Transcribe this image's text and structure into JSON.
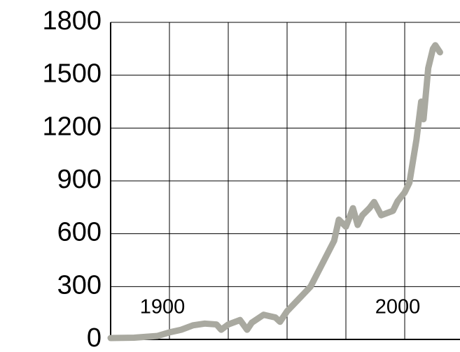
{
  "chart_data": {
    "type": "line",
    "x": [
      1875,
      1885,
      1895,
      1900,
      1905,
      1910,
      1915,
      1920,
      1922,
      1925,
      1930,
      1933,
      1935,
      1940,
      1945,
      1947,
      1950,
      1955,
      1960,
      1965,
      1970,
      1972,
      1975,
      1978,
      1980,
      1982,
      1985,
      1987,
      1990,
      1995,
      1997,
      2000,
      2002,
      2005,
      2007,
      2008,
      2010,
      2012,
      2013,
      2015
    ],
    "series": [
      {
        "color": "#a9a9a0",
        "values": [
          8,
          10,
          20,
          40,
          55,
          80,
          90,
          85,
          55,
          85,
          110,
          55,
          95,
          140,
          125,
          100,
          160,
          230,
          300,
          430,
          560,
          680,
          640,
          745,
          650,
          705,
          745,
          780,
          705,
          730,
          785,
          835,
          890,
          1135,
          1350,
          1250,
          1540,
          1650,
          1670,
          1630
        ]
      }
    ],
    "xlim": [
      1875,
      2023.5
    ],
    "xticks": [
      1900,
      2000
    ],
    "xgrid": [
      1900,
      1925,
      1950,
      1975,
      2000
    ],
    "ylim": [
      0,
      1800
    ],
    "yticks": [
      0,
      300,
      600,
      900,
      1200,
      1500,
      1800
    ],
    "grid": true
  }
}
